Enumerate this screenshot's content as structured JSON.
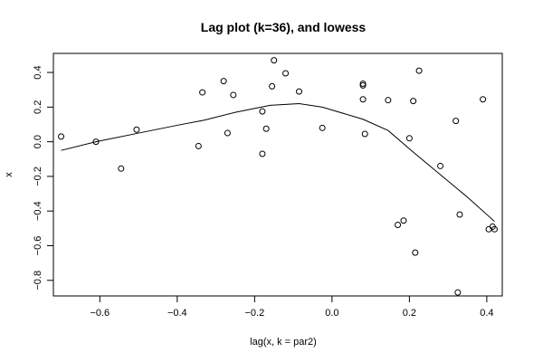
{
  "chart_data": {
    "type": "scatter",
    "title": "Lag plot (k=36), and lowess",
    "xlabel": "lag(x, k = par2)",
    "ylabel": "x",
    "xlim": [
      -0.72,
      0.44
    ],
    "ylim": [
      -0.89,
      0.51
    ],
    "xticks": [
      -0.6,
      -0.4,
      -0.2,
      0.0,
      0.2,
      0.4
    ],
    "xtick_labels": [
      "−0.6",
      "−0.4",
      "−0.2",
      "0.0",
      "0.2",
      "0.4"
    ],
    "yticks": [
      -0.8,
      -0.6,
      -0.4,
      -0.2,
      0.0,
      0.2,
      0.4
    ],
    "ytick_labels": [
      "−0.8",
      "−0.6",
      "−0.4",
      "−0.2",
      "0.0",
      "0.2",
      "0.4"
    ],
    "grid": false,
    "legend": "none",
    "colors": {
      "points": "#000000",
      "line": "#000000",
      "frame": "#000000"
    },
    "points": [
      {
        "x": -0.7,
        "y": 0.03
      },
      {
        "x": -0.61,
        "y": 0.0
      },
      {
        "x": -0.545,
        "y": -0.155
      },
      {
        "x": -0.505,
        "y": 0.07
      },
      {
        "x": -0.345,
        "y": -0.025
      },
      {
        "x": -0.335,
        "y": 0.285
      },
      {
        "x": -0.28,
        "y": 0.35
      },
      {
        "x": -0.27,
        "y": 0.05
      },
      {
        "x": -0.255,
        "y": 0.27
      },
      {
        "x": -0.18,
        "y": -0.07
      },
      {
        "x": -0.18,
        "y": 0.175
      },
      {
        "x": -0.17,
        "y": 0.075
      },
      {
        "x": -0.155,
        "y": 0.32
      },
      {
        "x": -0.15,
        "y": 0.47
      },
      {
        "x": -0.12,
        "y": 0.395
      },
      {
        "x": -0.085,
        "y": 0.29
      },
      {
        "x": -0.025,
        "y": 0.08
      },
      {
        "x": 0.08,
        "y": 0.245
      },
      {
        "x": 0.08,
        "y": 0.325
      },
      {
        "x": 0.08,
        "y": 0.335
      },
      {
        "x": 0.085,
        "y": 0.045
      },
      {
        "x": 0.145,
        "y": 0.24
      },
      {
        "x": 0.17,
        "y": -0.48
      },
      {
        "x": 0.185,
        "y": -0.455
      },
      {
        "x": 0.2,
        "y": 0.02
      },
      {
        "x": 0.21,
        "y": 0.235
      },
      {
        "x": 0.215,
        "y": -0.64
      },
      {
        "x": 0.225,
        "y": 0.41
      },
      {
        "x": 0.28,
        "y": -0.14
      },
      {
        "x": 0.32,
        "y": 0.12
      },
      {
        "x": 0.325,
        "y": -0.87
      },
      {
        "x": 0.33,
        "y": -0.42
      },
      {
        "x": 0.39,
        "y": 0.245
      },
      {
        "x": 0.405,
        "y": -0.505
      },
      {
        "x": 0.415,
        "y": -0.49
      },
      {
        "x": 0.42,
        "y": -0.505
      }
    ],
    "lowess": [
      {
        "x": -0.7,
        "y": -0.05
      },
      {
        "x": -0.61,
        "y": 0.0
      },
      {
        "x": -0.5,
        "y": 0.05
      },
      {
        "x": -0.4,
        "y": 0.095
      },
      {
        "x": -0.33,
        "y": 0.125
      },
      {
        "x": -0.25,
        "y": 0.17
      },
      {
        "x": -0.16,
        "y": 0.21
      },
      {
        "x": -0.085,
        "y": 0.22
      },
      {
        "x": -0.025,
        "y": 0.2
      },
      {
        "x": 0.08,
        "y": 0.13
      },
      {
        "x": 0.145,
        "y": 0.065
      },
      {
        "x": 0.21,
        "y": -0.06
      },
      {
        "x": 0.28,
        "y": -0.19
      },
      {
        "x": 0.35,
        "y": -0.32
      },
      {
        "x": 0.42,
        "y": -0.46
      }
    ]
  }
}
